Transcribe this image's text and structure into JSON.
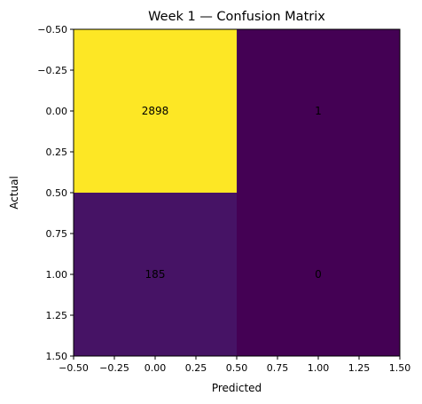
{
  "chart_data": {
    "type": "heatmap",
    "title": "Week 1 — Confusion Matrix",
    "xlabel": "Predicted",
    "ylabel": "Actual",
    "matrix": [
      [
        2898,
        1
      ],
      [
        185,
        0
      ]
    ],
    "xlim": [
      -0.5,
      1.5
    ],
    "ylim": [
      1.5,
      -0.5
    ],
    "xticks": [
      "−0.50",
      "−0.25",
      "0.00",
      "0.25",
      "0.50",
      "0.75",
      "1.00",
      "1.25",
      "1.50"
    ],
    "yticks": [
      "−0.50",
      "−0.25",
      "0.00",
      "0.25",
      "0.50",
      "0.75",
      "1.00",
      "1.25",
      "1.50"
    ],
    "colormap": "viridis",
    "colors": {
      "high": "#fde725",
      "low": "#440154"
    }
  }
}
